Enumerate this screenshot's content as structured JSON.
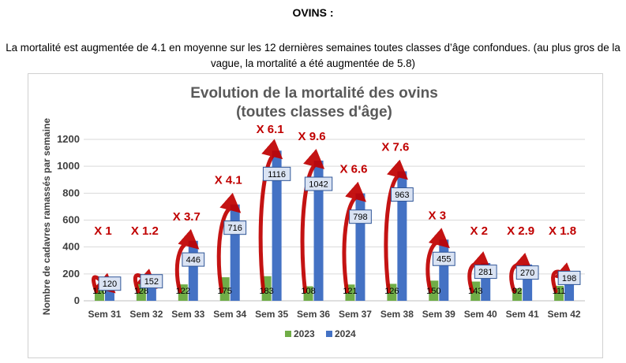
{
  "page": {
    "heading": "OVINS :",
    "intro": "La mortalité est augmentée de 4.1 en moyenne sur les 12 dernières semaines toutes classes d’âge confondues. (au plus gros de la vague, la mortalité a été augmentée de 5.8)"
  },
  "chart_data": {
    "type": "bar",
    "title": [
      "Evolution de la mortalité des ovins",
      "(toutes classes d'âge)"
    ],
    "xlabel": "",
    "ylabel": "Nombre de cadavres ramassés par semaine",
    "categories": [
      "Sem 31",
      "Sem 32",
      "Sem 33",
      "Sem 34",
      "Sem 35",
      "Sem 36",
      "Sem 37",
      "Sem 38",
      "Sem 39",
      "Sem 40",
      "Sem 41",
      "Sem 42"
    ],
    "series": [
      {
        "name": "2023",
        "color": "#70ad47",
        "values": [
          116,
          128,
          122,
          175,
          183,
          108,
          121,
          126,
          150,
          143,
          92,
          111
        ]
      },
      {
        "name": "2024",
        "color": "#4472c4",
        "values": [
          120,
          152,
          446,
          716,
          1116,
          1042,
          798,
          963,
          455,
          281,
          270,
          198
        ]
      }
    ],
    "ratio_labels": [
      "X 1",
      "X 1.2",
      "X 3.7",
      "X 4.1",
      "X 6.1",
      "X 9.6",
      "X 6.6",
      "X 7.6",
      "X 3",
      "X 2",
      "X 2.9",
      "X 1.8"
    ],
    "ylim": [
      0,
      1200
    ],
    "yticks": [
      0,
      200,
      400,
      600,
      800,
      1000,
      1200
    ],
    "grid": true,
    "legend": "bottom",
    "arrow_color": "#c00000"
  }
}
